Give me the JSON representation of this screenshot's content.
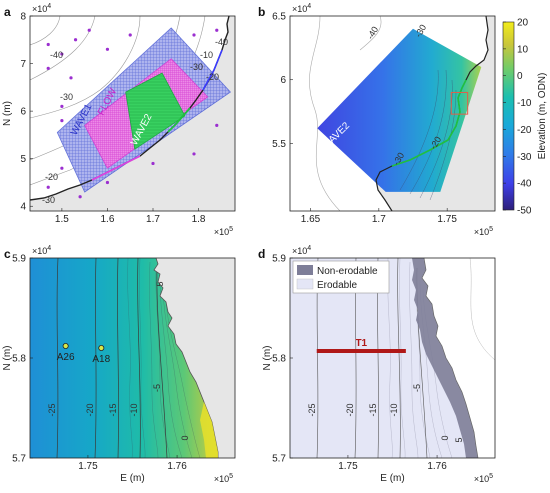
{
  "colors": {
    "land": "#e6e6e6",
    "sea": "#ffffff",
    "wave1": "#5b6bd8",
    "flow": "#e04ce0",
    "wave2": "#2ecc5a",
    "coast": "#222222",
    "erodable": "#e4e6f6",
    "nonerodable": "#7e7e98",
    "transect": "#b01818"
  },
  "chart_data": [
    {
      "panel": "a",
      "type": "map",
      "xlabel": "",
      "ylabel": "N (m)",
      "x_multiplier": "×10^5",
      "y_multiplier": "×10^4",
      "xlim": [
        1.43,
        1.88
      ],
      "ylim": [
        3.9,
        8.0
      ],
      "xticks": [
        "1.5",
        "1.6",
        "1.7",
        "1.8"
      ],
      "xtick_values": [
        1.5,
        1.6,
        1.7,
        1.8
      ],
      "yticks": [
        "4",
        "5",
        "6",
        "7",
        "8"
      ],
      "ytick_values": [
        4,
        5,
        6,
        7,
        8
      ],
      "grids": [
        {
          "name": "WAVE1",
          "label": "WAVE1",
          "color": "#5b6bd8",
          "corners": [
            [
              1.55,
              4.3
            ],
            [
              1.87,
              6.4
            ],
            [
              1.74,
              7.75
            ],
            [
              1.49,
              5.55
            ]
          ]
        },
        {
          "name": "FLOW",
          "label": "FLOW",
          "color": "#e04ce0",
          "corners": [
            [
              1.6,
              4.8
            ],
            [
              1.82,
              6.3
            ],
            [
              1.74,
              7.1
            ],
            [
              1.55,
              5.7
            ]
          ]
        },
        {
          "name": "WAVE2",
          "label": "WAVE2",
          "color": "#2ecc5a",
          "corners": [
            [
              1.66,
              5.2
            ],
            [
              1.77,
              5.9
            ],
            [
              1.72,
              6.8
            ],
            [
              1.64,
              6.4
            ]
          ]
        }
      ],
      "contour_labels": [
        "-40",
        "-30",
        "-20",
        "-10",
        "-30",
        "-40",
        "-20",
        "-30"
      ],
      "stations": [
        [
          1.47,
          7.4
        ],
        [
          1.5,
          7.2
        ],
        [
          1.53,
          7.5
        ],
        [
          1.47,
          6.9
        ],
        [
          1.52,
          6.7
        ],
        [
          1.56,
          7.7
        ],
        [
          1.6,
          7.3
        ],
        [
          1.65,
          7.6
        ],
        [
          1.79,
          7.6
        ],
        [
          1.84,
          7.7
        ],
        [
          1.5,
          5.8
        ],
        [
          1.5,
          6.1
        ],
        [
          1.5,
          4.8
        ],
        [
          1.6,
          4.5
        ],
        [
          1.7,
          4.9
        ],
        [
          1.79,
          5.1
        ],
        [
          1.84,
          5.7
        ],
        [
          1.47,
          4.4
        ],
        [
          1.54,
          4.2
        ]
      ]
    },
    {
      "panel": "b",
      "type": "heatmap",
      "xlabel": "",
      "ylabel": "",
      "x_multiplier": "×10^5",
      "y_multiplier": "×10^4",
      "xlim": [
        1.635,
        1.785
      ],
      "ylim": [
        4.97,
        6.5
      ],
      "xticks": [
        "1.65",
        "1.7",
        "1.75"
      ],
      "xtick_values": [
        1.65,
        1.7,
        1.75
      ],
      "yticks": [
        "5.5",
        "6",
        "6.5"
      ],
      "ytick_values": [
        5.5,
        6.0,
        6.5
      ],
      "grid_label": "WAVE2",
      "domain": [
        [
          1.655,
          5.62
        ],
        [
          1.725,
          6.4
        ],
        [
          1.775,
          6.1
        ],
        [
          1.745,
          5.12
        ],
        [
          1.705,
          5.12
        ]
      ],
      "box": [
        1.753,
        1.765,
        5.73,
        5.9
      ],
      "contour_labels": [
        "-40",
        "-30",
        "-30",
        "-20"
      ]
    },
    {
      "panel": "c",
      "type": "heatmap",
      "xlabel": "E (m)",
      "ylabel": "N (m)",
      "x_multiplier": "×10^5",
      "y_multiplier": "×10^4",
      "xlim": [
        1.7435,
        1.7665
      ],
      "ylim": [
        5.7,
        5.9
      ],
      "xticks": [
        "1.75",
        "1.76"
      ],
      "xtick_values": [
        1.75,
        1.76
      ],
      "yticks": [
        "5.7",
        "5.8",
        "5.9"
      ],
      "ytick_values": [
        5.7,
        5.8,
        5.9
      ],
      "stations": [
        {
          "name": "A26",
          "x": 1.7475,
          "y": 5.812
        },
        {
          "name": "A18",
          "x": 1.7515,
          "y": 5.81
        }
      ],
      "contour_labels": [
        "-25",
        "-20",
        "-15",
        "-10",
        "-5",
        "0",
        "5",
        "5"
      ]
    },
    {
      "panel": "d",
      "type": "map",
      "xlabel": "E (m)",
      "ylabel": "N (m)",
      "x_multiplier": "×10^5",
      "y_multiplier": "×10^4",
      "xlim": [
        1.7435,
        1.7665
      ],
      "ylim": [
        5.7,
        5.9
      ],
      "xticks": [
        "1.75",
        "1.76"
      ],
      "xtick_values": [
        1.75,
        1.76
      ],
      "yticks": [
        "5.7",
        "5.8",
        "5.9"
      ],
      "ytick_values": [
        5.7,
        5.8,
        5.9
      ],
      "legend": [
        {
          "label": "Non-erodable",
          "color": "#7e7e98"
        },
        {
          "label": "Erodable",
          "color": "#e4e6f6"
        }
      ],
      "legend_position": "top-left",
      "transect": {
        "name": "T1",
        "x": [
          1.7465,
          1.7565
        ],
        "y": 5.807
      },
      "contour_labels": [
        "-25",
        "-20",
        "-15",
        "-10",
        "-5",
        "0",
        "5"
      ]
    }
  ],
  "colorbar": {
    "label": "Elevation (m, ODN)",
    "ticks": [
      "20",
      "10",
      "0",
      "-10",
      "-20",
      "-30",
      "-40",
      "-50"
    ],
    "min": -50,
    "max": 20
  }
}
